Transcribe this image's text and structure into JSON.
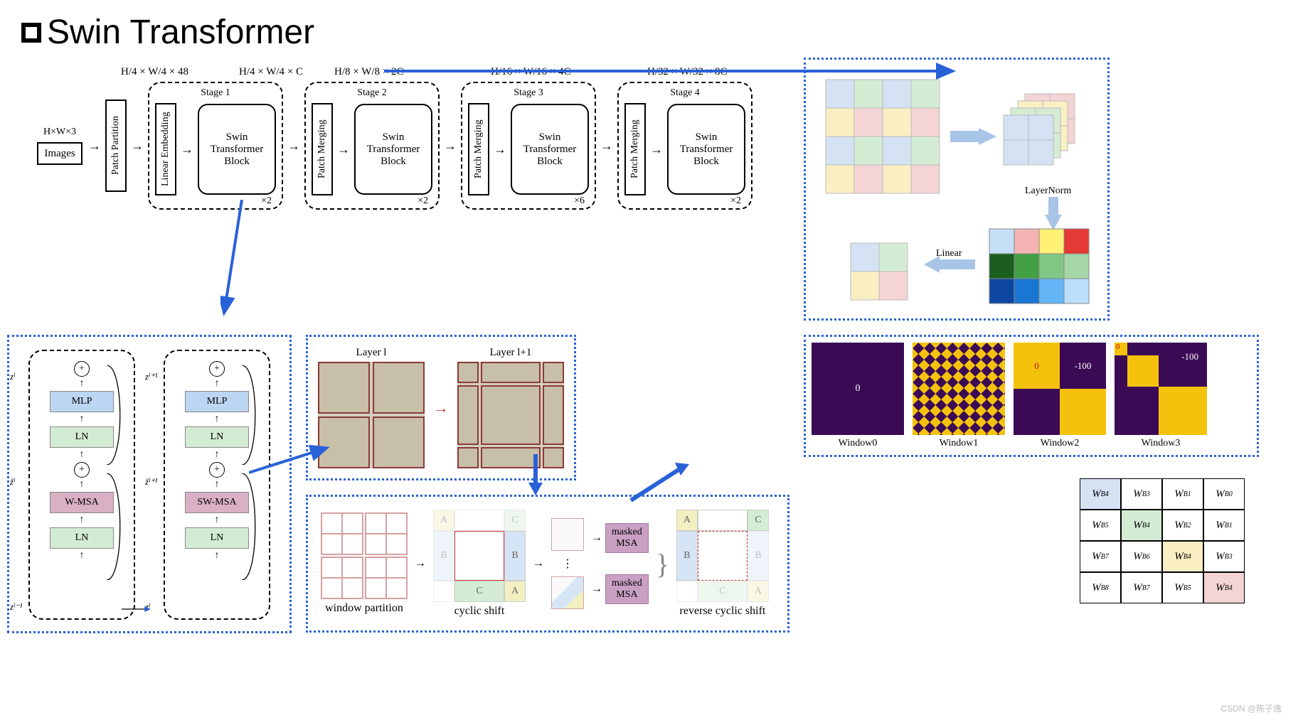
{
  "title": "Swin Transformer",
  "watermark": "CSDN @陈子逸",
  "pipeline": {
    "input_dim": "H×W×3",
    "input_label": "Images",
    "patch_partition": "Patch Partition",
    "stages": [
      {
        "name": "Stage 1",
        "pre": "Linear Embedding",
        "block": "Swin\nTransformer\nBlock",
        "mult": "×2",
        "dim": "H/4 × W/4 × 48",
        "dim_after": "H/4 × W/4 × C"
      },
      {
        "name": "Stage 2",
        "pre": "Patch Merging",
        "block": "Swin\nTransformer\nBlock",
        "mult": "×2",
        "dim": "H/8 × W/8 × 2C"
      },
      {
        "name": "Stage 3",
        "pre": "Patch Merging",
        "block": "Swin\nTransformer\nBlock",
        "mult": "×6",
        "dim": "H/16 × W/16 × 4C"
      },
      {
        "name": "Stage 4",
        "pre": "Patch Merging",
        "block": "Swin\nTransformer\nBlock",
        "mult": "×2",
        "dim": "H/32 × W/32 × 8C"
      }
    ]
  },
  "block": {
    "z_labels": [
      "zˡ",
      "ẑˡ",
      "zˡ⁻¹",
      "zˡ⁺¹",
      "ẑˡ⁺¹",
      "zˡ"
    ],
    "mlp": "MLP",
    "ln": "LN",
    "wmsa": "W-MSA",
    "swmsa": "SW-MSA",
    "colors": {
      "mlp": "#bcd5f2",
      "ln": "#d3ebd3",
      "msa": "#d9b0c4"
    }
  },
  "shift": {
    "left_label": "Layer l",
    "right_label": "Layer l+1"
  },
  "cyclic": {
    "labels": [
      "window partition",
      "cyclic shift",
      "reverse cyclic shift"
    ],
    "masked": "masked\nMSA",
    "regions": [
      "A",
      "B",
      "C"
    ]
  },
  "masks": {
    "items": [
      {
        "label": "Window0",
        "type": "solid",
        "text_c": "0",
        "colors": {
          "bg": "#3b0a55",
          "fg": "#ffffff"
        }
      },
      {
        "label": "Window1",
        "type": "checker"
      },
      {
        "label": "Window2",
        "type": "quad",
        "v0": "0",
        "vneg": "-100",
        "colors": {
          "q00": "#f4c20d",
          "q01": "#3b0a55",
          "q10": "#3b0a55",
          "q11": "#f4c20d"
        }
      },
      {
        "label": "Window3",
        "type": "tri",
        "vneg": "-100",
        "colors": {
          "bg": "#3b0a55",
          "diag": "#f4c20d"
        }
      }
    ]
  },
  "merge": {
    "layernorm": "LayerNorm",
    "linear": "Linear",
    "colors": [
      "#d4e2f4",
      "#d4ecd4",
      "#faefc3",
      "#f4d4d4"
    ]
  },
  "wb_table": {
    "cells": [
      [
        "W_B^4",
        "W_B^3",
        "W_B^1",
        "W_B^0"
      ],
      [
        "W_B^5",
        "W_B^4",
        "W_B^2",
        "W_B^1"
      ],
      [
        "W_B^7",
        "W_B^6",
        "W_B^4",
        "W_B^3"
      ],
      [
        "W_B^8",
        "W_B^7",
        "W_B^5",
        "W_B^4"
      ]
    ],
    "hl_colors": {
      "0,0": "#d4e2f4",
      "1,1": "#d4ecd4",
      "2,2": "#faefc3",
      "3,3": "#f4d4d4"
    }
  }
}
